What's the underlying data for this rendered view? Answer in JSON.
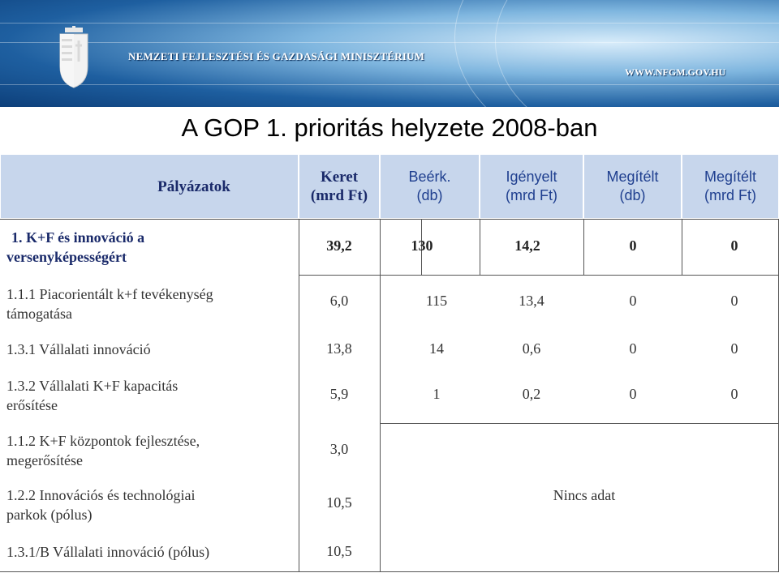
{
  "header": {
    "ministry": "NEMZETI FEJLESZTÉSI ÉS GAZDASÁGI MINISZTÉRIUM",
    "website": "WWW.NFGM.GOV.HU"
  },
  "title": "A GOP 1. prioritás helyzete 2008-ban",
  "table": {
    "columns": {
      "palyazatok": "Pályázatok",
      "keret_1": "Keret",
      "keret_2": "(mrd Ft)",
      "beerk_1": "Beérk.",
      "beerk_2": "(db)",
      "igenyelt_1": "Igényelt",
      "igenyelt_2": "(mrd Ft)",
      "megitelt_db_1": "Megítélt",
      "megitelt_db_2": "(db)",
      "megitelt_ft_1": "Megítélt",
      "megitelt_ft_2": "(mrd Ft)"
    },
    "rows": [
      {
        "label_1": "1. K+F és innováció a",
        "label_2": "versenyképességért",
        "keret": "39,2",
        "beerk": "130",
        "igenyelt": "14,2",
        "megitelt_db": "0",
        "megitelt_ft": "0"
      },
      {
        "label_1": "1.1.1 Piacorientált k+f tevékenység",
        "label_2": "támogatása",
        "keret": "6,0",
        "beerk": "115",
        "igenyelt": "13,4",
        "megitelt_db": "0",
        "megitelt_ft": "0"
      },
      {
        "label_1": "1.3.1 Vállalati innováció",
        "keret": "13,8",
        "beerk": "14",
        "igenyelt": "0,6",
        "megitelt_db": "0",
        "megitelt_ft": "0"
      },
      {
        "label_1": "1.3.2 Vállalati K+F kapacitás",
        "label_2": "erősítése",
        "keret": "5,9",
        "beerk": "1",
        "igenyelt": "0,2",
        "megitelt_db": "0",
        "megitelt_ft": "0"
      },
      {
        "label_1": "1.1.2 K+F központok fejlesztése,",
        "label_2": "megerősítése",
        "keret": "3,0"
      },
      {
        "label_1": "1.2.2 Innovációs és technológiai",
        "label_2": "parkok (pólus)",
        "keret": "10,5"
      },
      {
        "label_1": "1.3.1/B Vállalati innováció (pólus)",
        "keret": "10,5"
      }
    ],
    "no_data": "Nincs adat"
  }
}
